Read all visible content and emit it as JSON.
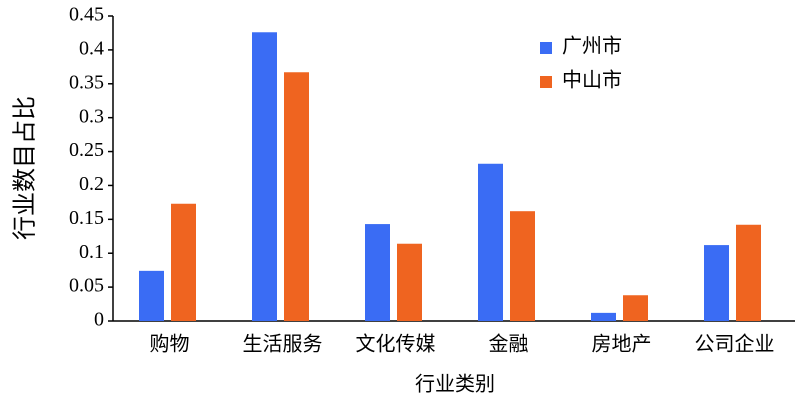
{
  "chart_data": {
    "type": "bar",
    "x_label": "行业类别",
    "y_label": "行业数目占比",
    "categories": [
      "购物",
      "生活服务",
      "文化传媒",
      "金融",
      "房地产",
      "公司企业"
    ],
    "series": [
      {
        "name": "广州市",
        "color": "#3a6cf4",
        "values": [
          0.074,
          0.426,
          0.143,
          0.232,
          0.012,
          0.112
        ]
      },
      {
        "name": "中山市",
        "color": "#ef6420",
        "values": [
          0.173,
          0.367,
          0.114,
          0.162,
          0.038,
          0.142
        ]
      }
    ],
    "ylim": [
      0,
      0.45
    ],
    "yticks": [
      0,
      0.05,
      0.1,
      0.15,
      0.2,
      0.25,
      0.3,
      0.35,
      0.4,
      0.45
    ],
    "grid": false,
    "legend": "upper right"
  }
}
